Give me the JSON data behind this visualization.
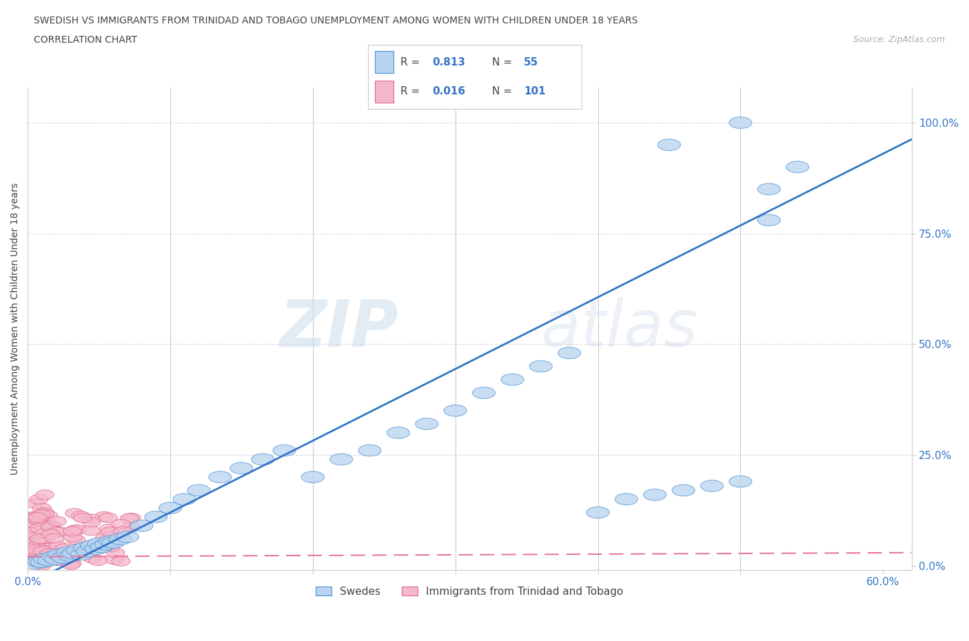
{
  "title_line1": "SWEDISH VS IMMIGRANTS FROM TRINIDAD AND TOBAGO UNEMPLOYMENT AMONG WOMEN WITH CHILDREN UNDER 18 YEARS",
  "title_line2": "CORRELATION CHART",
  "source": "Source: ZipAtlas.com",
  "ylabel": "Unemployment Among Women with Children Under 18 years",
  "xlim": [
    0.0,
    0.62
  ],
  "ylim": [
    -0.01,
    1.08
  ],
  "xtick_positions": [
    0.0,
    0.1,
    0.2,
    0.3,
    0.4,
    0.5,
    0.6
  ],
  "xtick_labels": [
    "0.0%",
    "",
    "",
    "",
    "",
    "",
    "60.0%"
  ],
  "ytick_positions": [
    0.0,
    0.25,
    0.5,
    0.75,
    1.0
  ],
  "ytick_labels": [
    "0.0%",
    "25.0%",
    "50.0%",
    "75.0%",
    "100.0%"
  ],
  "swedes_color": "#b8d4f0",
  "swedes_edge_color": "#4a90d4",
  "immigrants_color": "#f5b8cb",
  "immigrants_edge_color": "#e06888",
  "regression_blue_color": "#3575c8",
  "regression_pink_color": "#e87898",
  "R_swedes": 0.813,
  "N_swedes": 55,
  "R_immigrants": 0.016,
  "N_immigrants": 101,
  "watermark_zip": "ZIP",
  "watermark_atlas": "atlas",
  "background_color": "#ffffff",
  "grid_color": "#d8d8e8",
  "legend_R_color": "#3575c8",
  "legend_text_color": "#444444",
  "tick_color": "#3575c8",
  "title_color": "#444444",
  "source_color": "#aaaaaa"
}
